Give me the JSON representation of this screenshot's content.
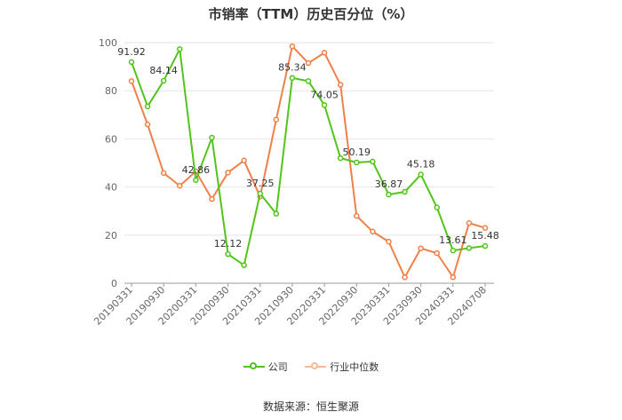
{
  "chart_data": {
    "type": "line",
    "title": "市销率（TTM）历史百分位（%）",
    "xlabel": "",
    "ylabel": "",
    "ylim": [
      0,
      100
    ],
    "yticks": [
      0,
      20,
      40,
      60,
      80,
      100
    ],
    "x": [
      "20190331",
      "20190630",
      "20190930",
      "20191231",
      "20200331",
      "20200630",
      "20200930",
      "20201231",
      "20210331",
      "20210630",
      "20210930",
      "20211231",
      "20220331",
      "20220630",
      "20220930",
      "20221231",
      "20230331",
      "20230630",
      "20230930",
      "20231231",
      "20240331",
      "20240630",
      "20240708"
    ],
    "xticks": [
      "20190331",
      "20190930",
      "20200331",
      "20200930",
      "20210331",
      "20210930",
      "20220331",
      "20220930",
      "20230331",
      "20230930",
      "20240331",
      "20240708"
    ],
    "series": [
      {
        "name": "公司",
        "color": "#52c41a",
        "values": [
          91.92,
          73.5,
          84.14,
          97.3,
          42.86,
          60.5,
          12.12,
          7.5,
          37.25,
          28.9,
          85.34,
          84.0,
          74.05,
          52.0,
          50.19,
          50.6,
          36.87,
          38.0,
          45.18,
          31.5,
          13.61,
          14.6,
          15.48
        ]
      },
      {
        "name": "行业中位数",
        "color": "#f08049",
        "values": [
          84.0,
          66.0,
          45.8,
          40.5,
          46.5,
          35.0,
          46.0,
          51.0,
          36.0,
          68.0,
          98.5,
          91.5,
          95.8,
          82.5,
          28.0,
          21.5,
          17.3,
          2.5,
          14.5,
          12.5,
          2.5,
          25.0,
          23.0
        ]
      }
    ],
    "data_labels": [
      {
        "series": 0,
        "index": 0,
        "text": "91.92"
      },
      {
        "series": 0,
        "index": 2,
        "text": "84.14"
      },
      {
        "series": 0,
        "index": 4,
        "text": "42.86"
      },
      {
        "series": 0,
        "index": 6,
        "text": "12.12"
      },
      {
        "series": 0,
        "index": 8,
        "text": "37.25"
      },
      {
        "series": 0,
        "index": 10,
        "text": "85.34"
      },
      {
        "series": 0,
        "index": 12,
        "text": "74.05"
      },
      {
        "series": 0,
        "index": 14,
        "text": "50.19"
      },
      {
        "series": 0,
        "index": 16,
        "text": "36.87"
      },
      {
        "series": 0,
        "index": 18,
        "text": "45.18"
      },
      {
        "series": 0,
        "index": 20,
        "text": "13.61"
      },
      {
        "series": 0,
        "index": 22,
        "text": "15.48"
      }
    ],
    "grid": true,
    "legend_position": "bottom"
  },
  "source": "数据来源：恒生聚源"
}
